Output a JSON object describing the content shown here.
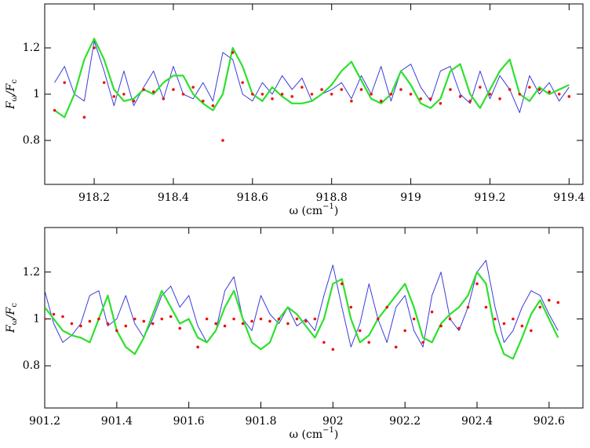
{
  "chart_data": [
    {
      "type": "line",
      "y_label": [
        "F",
        "ω",
        "/F",
        "c"
      ],
      "x_label": [
        "ω (cm",
        "−1",
        ")"
      ],
      "x": [
        918.1,
        918.125,
        918.15,
        918.175,
        918.2,
        918.225,
        918.25,
        918.275,
        918.3,
        918.325,
        918.35,
        918.375,
        918.4,
        918.425,
        918.45,
        918.475,
        918.5,
        918.525,
        918.55,
        918.575,
        918.6,
        918.625,
        918.65,
        918.675,
        918.7,
        918.725,
        918.75,
        918.775,
        918.8,
        918.825,
        918.85,
        918.875,
        918.9,
        918.925,
        918.95,
        918.975,
        919.0,
        919.025,
        919.05,
        919.075,
        919.1,
        919.125,
        919.15,
        919.175,
        919.2,
        919.225,
        919.25,
        919.275,
        919.3,
        919.325,
        919.35,
        919.375,
        919.4
      ],
      "xlim": [
        918.075,
        919.435
      ],
      "xticks": [
        918.2,
        918.4,
        918.6,
        918.8,
        919,
        919.2,
        919.4
      ],
      "ylim": [
        0.61,
        1.39
      ],
      "yticks": [
        0.8,
        1,
        1.2
      ],
      "series": [
        {
          "color": "#3b3bdc",
          "style": "line",
          "values": [
            1.05,
            1.12,
            1.0,
            0.97,
            1.23,
            1.1,
            0.95,
            1.1,
            0.95,
            1.03,
            1.1,
            0.98,
            1.12,
            1.0,
            0.98,
            1.05,
            0.97,
            1.18,
            1.15,
            1.0,
            0.97,
            1.05,
            1.0,
            1.08,
            1.02,
            1.07,
            0.97,
            1.0,
            1.02,
            1.05,
            0.98,
            1.08,
            1.0,
            1.12,
            0.97,
            1.1,
            1.13,
            1.03,
            0.97,
            1.1,
            1.12,
            1.0,
            0.96,
            1.1,
            0.98,
            1.08,
            1.02,
            0.92,
            1.08,
            1.0,
            1.05,
            0.97,
            1.03
          ]
        },
        {
          "color": "#2ee02e",
          "style": "thick",
          "values": [
            0.93,
            0.9,
            1.0,
            1.15,
            1.24,
            1.15,
            1.02,
            0.97,
            0.98,
            1.02,
            1.0,
            1.05,
            1.08,
            1.08,
            1.0,
            0.96,
            0.93,
            1.0,
            1.2,
            1.12,
            1.0,
            0.97,
            1.03,
            0.99,
            0.96,
            0.96,
            0.97,
            1.0,
            1.04,
            1.1,
            1.14,
            1.06,
            0.98,
            0.96,
            1.0,
            1.1,
            1.04,
            0.96,
            0.94,
            0.98,
            1.1,
            1.13,
            1.0,
            0.94,
            1.02,
            1.1,
            1.15,
            1.0,
            0.97,
            1.03,
            1.0,
            1.02,
            1.04
          ]
        },
        {
          "color": "#ee1010",
          "style": "dots",
          "values": [
            0.93,
            1.05,
            null,
            0.9,
            1.2,
            1.05,
            0.99,
            1.0,
            0.97,
            1.02,
            1.01,
            0.98,
            1.02,
            1.0,
            1.03,
            0.97,
            0.95,
            0.8,
            1.18,
            1.05,
            1.0,
            1.0,
            0.98,
            1.0,
            0.99,
            1.03,
            1.0,
            1.02,
            1.0,
            1.02,
            0.97,
            1.02,
            1.0,
            0.97,
            1.0,
            1.02,
            1.0,
            0.98,
            0.98,
            0.96,
            1.02,
            0.99,
            0.97,
            1.03,
            1.0,
            0.98,
            1.02,
            1.0,
            1.03,
            1.02,
            1.01,
            1.0,
            0.99
          ]
        }
      ]
    },
    {
      "type": "line",
      "y_label": [
        "F",
        "ω",
        "/F",
        "c"
      ],
      "x_label": [
        "ω (cm",
        "−1",
        ")"
      ],
      "x": [
        901.2,
        901.225,
        901.25,
        901.275,
        901.3,
        901.325,
        901.35,
        901.375,
        901.4,
        901.425,
        901.45,
        901.475,
        901.5,
        901.525,
        901.55,
        901.575,
        901.6,
        901.625,
        901.65,
        901.675,
        901.7,
        901.725,
        901.75,
        901.775,
        901.8,
        901.825,
        901.85,
        901.875,
        901.9,
        901.925,
        901.95,
        901.975,
        902.0,
        902.025,
        902.05,
        902.075,
        902.1,
        902.125,
        902.15,
        902.175,
        902.2,
        902.225,
        902.25,
        902.275,
        902.3,
        902.325,
        902.35,
        902.375,
        902.4,
        902.425,
        902.45,
        902.475,
        902.5,
        902.525,
        902.55,
        902.575,
        902.6,
        902.625
      ],
      "xlim": [
        901.2,
        902.694
      ],
      "xticks": [
        901.2,
        901.4,
        901.6,
        901.8,
        902,
        902.2,
        902.4,
        902.6
      ],
      "ylim": [
        0.62,
        1.39
      ],
      "yticks": [
        0.8,
        1,
        1.2
      ],
      "series": [
        {
          "color": "#3b3bdc",
          "style": "line",
          "values": [
            1.12,
            0.98,
            0.9,
            0.93,
            0.98,
            1.1,
            1.12,
            0.97,
            1.0,
            1.1,
            0.98,
            0.92,
            1.0,
            1.1,
            1.14,
            1.05,
            1.1,
            0.97,
            0.9,
            0.95,
            1.12,
            1.18,
            1.0,
            0.95,
            1.1,
            1.02,
            0.98,
            1.05,
            0.97,
            1.0,
            0.95,
            1.1,
            1.23,
            1.05,
            0.88,
            0.98,
            1.15,
            1.0,
            0.9,
            1.05,
            1.1,
            0.95,
            0.88,
            1.1,
            1.2,
            1.0,
            0.95,
            1.05,
            1.2,
            1.25,
            1.05,
            0.9,
            0.95,
            1.05,
            1.12,
            1.1,
            1.02,
            0.95
          ]
        },
        {
          "color": "#2ee02e",
          "style": "thick",
          "values": [
            1.05,
            1.0,
            0.95,
            0.93,
            0.92,
            0.9,
            1.0,
            1.1,
            0.95,
            0.88,
            0.85,
            0.92,
            1.02,
            1.12,
            1.05,
            0.98,
            1.0,
            0.92,
            0.9,
            0.95,
            1.05,
            1.12,
            1.0,
            0.9,
            0.87,
            0.9,
            1.0,
            1.05,
            1.02,
            0.97,
            0.92,
            1.0,
            1.15,
            1.17,
            1.0,
            0.9,
            0.93,
            1.0,
            1.05,
            1.1,
            1.15,
            1.05,
            0.92,
            0.9,
            0.98,
            1.02,
            1.05,
            1.1,
            1.2,
            1.15,
            0.95,
            0.85,
            0.83,
            0.92,
            1.02,
            1.08,
            1.0,
            0.92
          ]
        },
        {
          "color": "#ee1010",
          "style": "dots",
          "values": [
            1.0,
            1.02,
            1.01,
            0.98,
            0.97,
            0.99,
            1.0,
            0.98,
            0.95,
            0.97,
            1.0,
            0.99,
            0.98,
            1.0,
            1.01,
            0.96,
            null,
            0.88,
            1.0,
            0.98,
            0.97,
            1.0,
            0.98,
            0.99,
            1.0,
            0.99,
            1.0,
            0.98,
            1.0,
            0.99,
            1.0,
            0.9,
            0.87,
            1.15,
            1.05,
            0.95,
            0.9,
            1.0,
            1.05,
            0.88,
            0.95,
            1.0,
            0.9,
            1.03,
            0.97,
            1.0,
            0.96,
            1.05,
            1.15,
            1.05,
            1.0,
            0.98,
            1.0,
            0.97,
            0.95,
            1.05,
            1.08,
            1.07
          ]
        }
      ]
    }
  ]
}
